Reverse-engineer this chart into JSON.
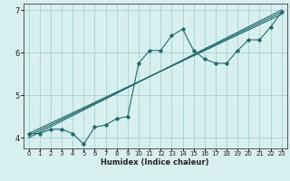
{
  "title": "",
  "xlabel": "Humidex (Indice chaleur)",
  "ylabel": "",
  "background_color": "#d8efef",
  "grid_color": "#aed4d4",
  "line_color": "#1e6b6b",
  "xlim": [
    -0.5,
    23.5
  ],
  "ylim": [
    3.75,
    7.15
  ],
  "yticks": [
    4,
    5,
    6,
    7
  ],
  "xticks": [
    0,
    1,
    2,
    3,
    4,
    5,
    6,
    7,
    8,
    9,
    10,
    11,
    12,
    13,
    14,
    15,
    16,
    17,
    18,
    19,
    20,
    21,
    22,
    23
  ],
  "scatter_x": [
    0,
    1,
    2,
    3,
    4,
    5,
    6,
    7,
    8,
    9,
    10,
    11,
    12,
    13,
    14,
    15,
    16,
    17,
    18,
    19,
    20,
    21,
    22,
    23
  ],
  "scatter_y": [
    4.1,
    4.1,
    4.2,
    4.2,
    4.1,
    3.85,
    4.25,
    4.3,
    4.45,
    4.5,
    5.75,
    6.05,
    6.05,
    6.4,
    6.55,
    6.05,
    5.85,
    5.75,
    5.75,
    6.05,
    6.3,
    6.3,
    6.6,
    6.95
  ],
  "reg_lines": [
    [
      [
        0,
        23
      ],
      [
        4.05,
        6.95
      ]
    ],
    [
      [
        0,
        23
      ],
      [
        4.1,
        6.9
      ]
    ],
    [
      [
        0,
        23
      ],
      [
        4.0,
        7.0
      ]
    ]
  ]
}
